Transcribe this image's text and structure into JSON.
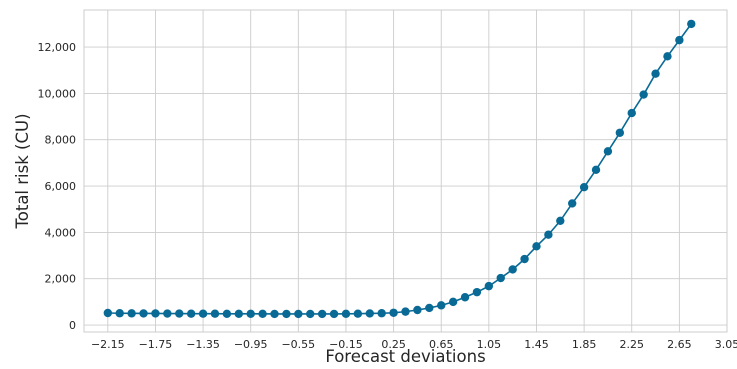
{
  "chart_data": {
    "type": "line",
    "xlabel": "Forecast deviations",
    "ylabel": "Total risk (CU)",
    "xlim": [
      -2.35,
      3.05
    ],
    "ylim": [
      -300,
      13600
    ],
    "x_ticks": [
      -2.15,
      -1.75,
      -1.35,
      -0.95,
      -0.55,
      -0.15,
      0.25,
      0.65,
      1.05,
      1.45,
      1.85,
      2.25,
      2.65,
      3.05
    ],
    "x_tick_labels": [
      "−2.15",
      "−1.75",
      "−1.35",
      "−0.95",
      "−0.55",
      "−0.15",
      "0.25",
      "0.65",
      "1.05",
      "1.45",
      "1.85",
      "2.25",
      "2.65",
      "3.05"
    ],
    "y_ticks": [
      0,
      2000,
      4000,
      6000,
      8000,
      10000,
      12000
    ],
    "y_tick_labels": [
      "0",
      "2,000",
      "4,000",
      "6,000",
      "8,000",
      "10,000",
      "12,000"
    ],
    "grid": true,
    "series": [
      {
        "color": "#0a6a96",
        "marker": "circle",
        "x": [
          -2.15,
          -2.05,
          -1.95,
          -1.85,
          -1.75,
          -1.65,
          -1.55,
          -1.45,
          -1.35,
          -1.25,
          -1.15,
          -1.05,
          -0.95,
          -0.85,
          -0.75,
          -0.65,
          -0.55,
          -0.45,
          -0.35,
          -0.25,
          -0.15,
          -0.05,
          0.05,
          0.15,
          0.25,
          0.35,
          0.45,
          0.55,
          0.65,
          0.75,
          0.85,
          0.95,
          1.05,
          1.15,
          1.25,
          1.35,
          1.45,
          1.55,
          1.65,
          1.75,
          1.85,
          1.95,
          2.05,
          2.15,
          2.25,
          2.35,
          2.45,
          2.55,
          2.65,
          2.75
        ],
        "y": [
          520,
          510,
          505,
          500,
          500,
          495,
          495,
          490,
          490,
          490,
          485,
          485,
          485,
          485,
          480,
          480,
          480,
          480,
          480,
          480,
          485,
          490,
          500,
          510,
          530,
          580,
          650,
          740,
          850,
          1000,
          1200,
          1420,
          1680,
          2030,
          2400,
          2850,
          3400,
          3900,
          4500,
          5250,
          5950,
          6700,
          7500,
          8300,
          9150,
          9950,
          10850,
          11600,
          12300,
          13000
        ]
      }
    ]
  }
}
